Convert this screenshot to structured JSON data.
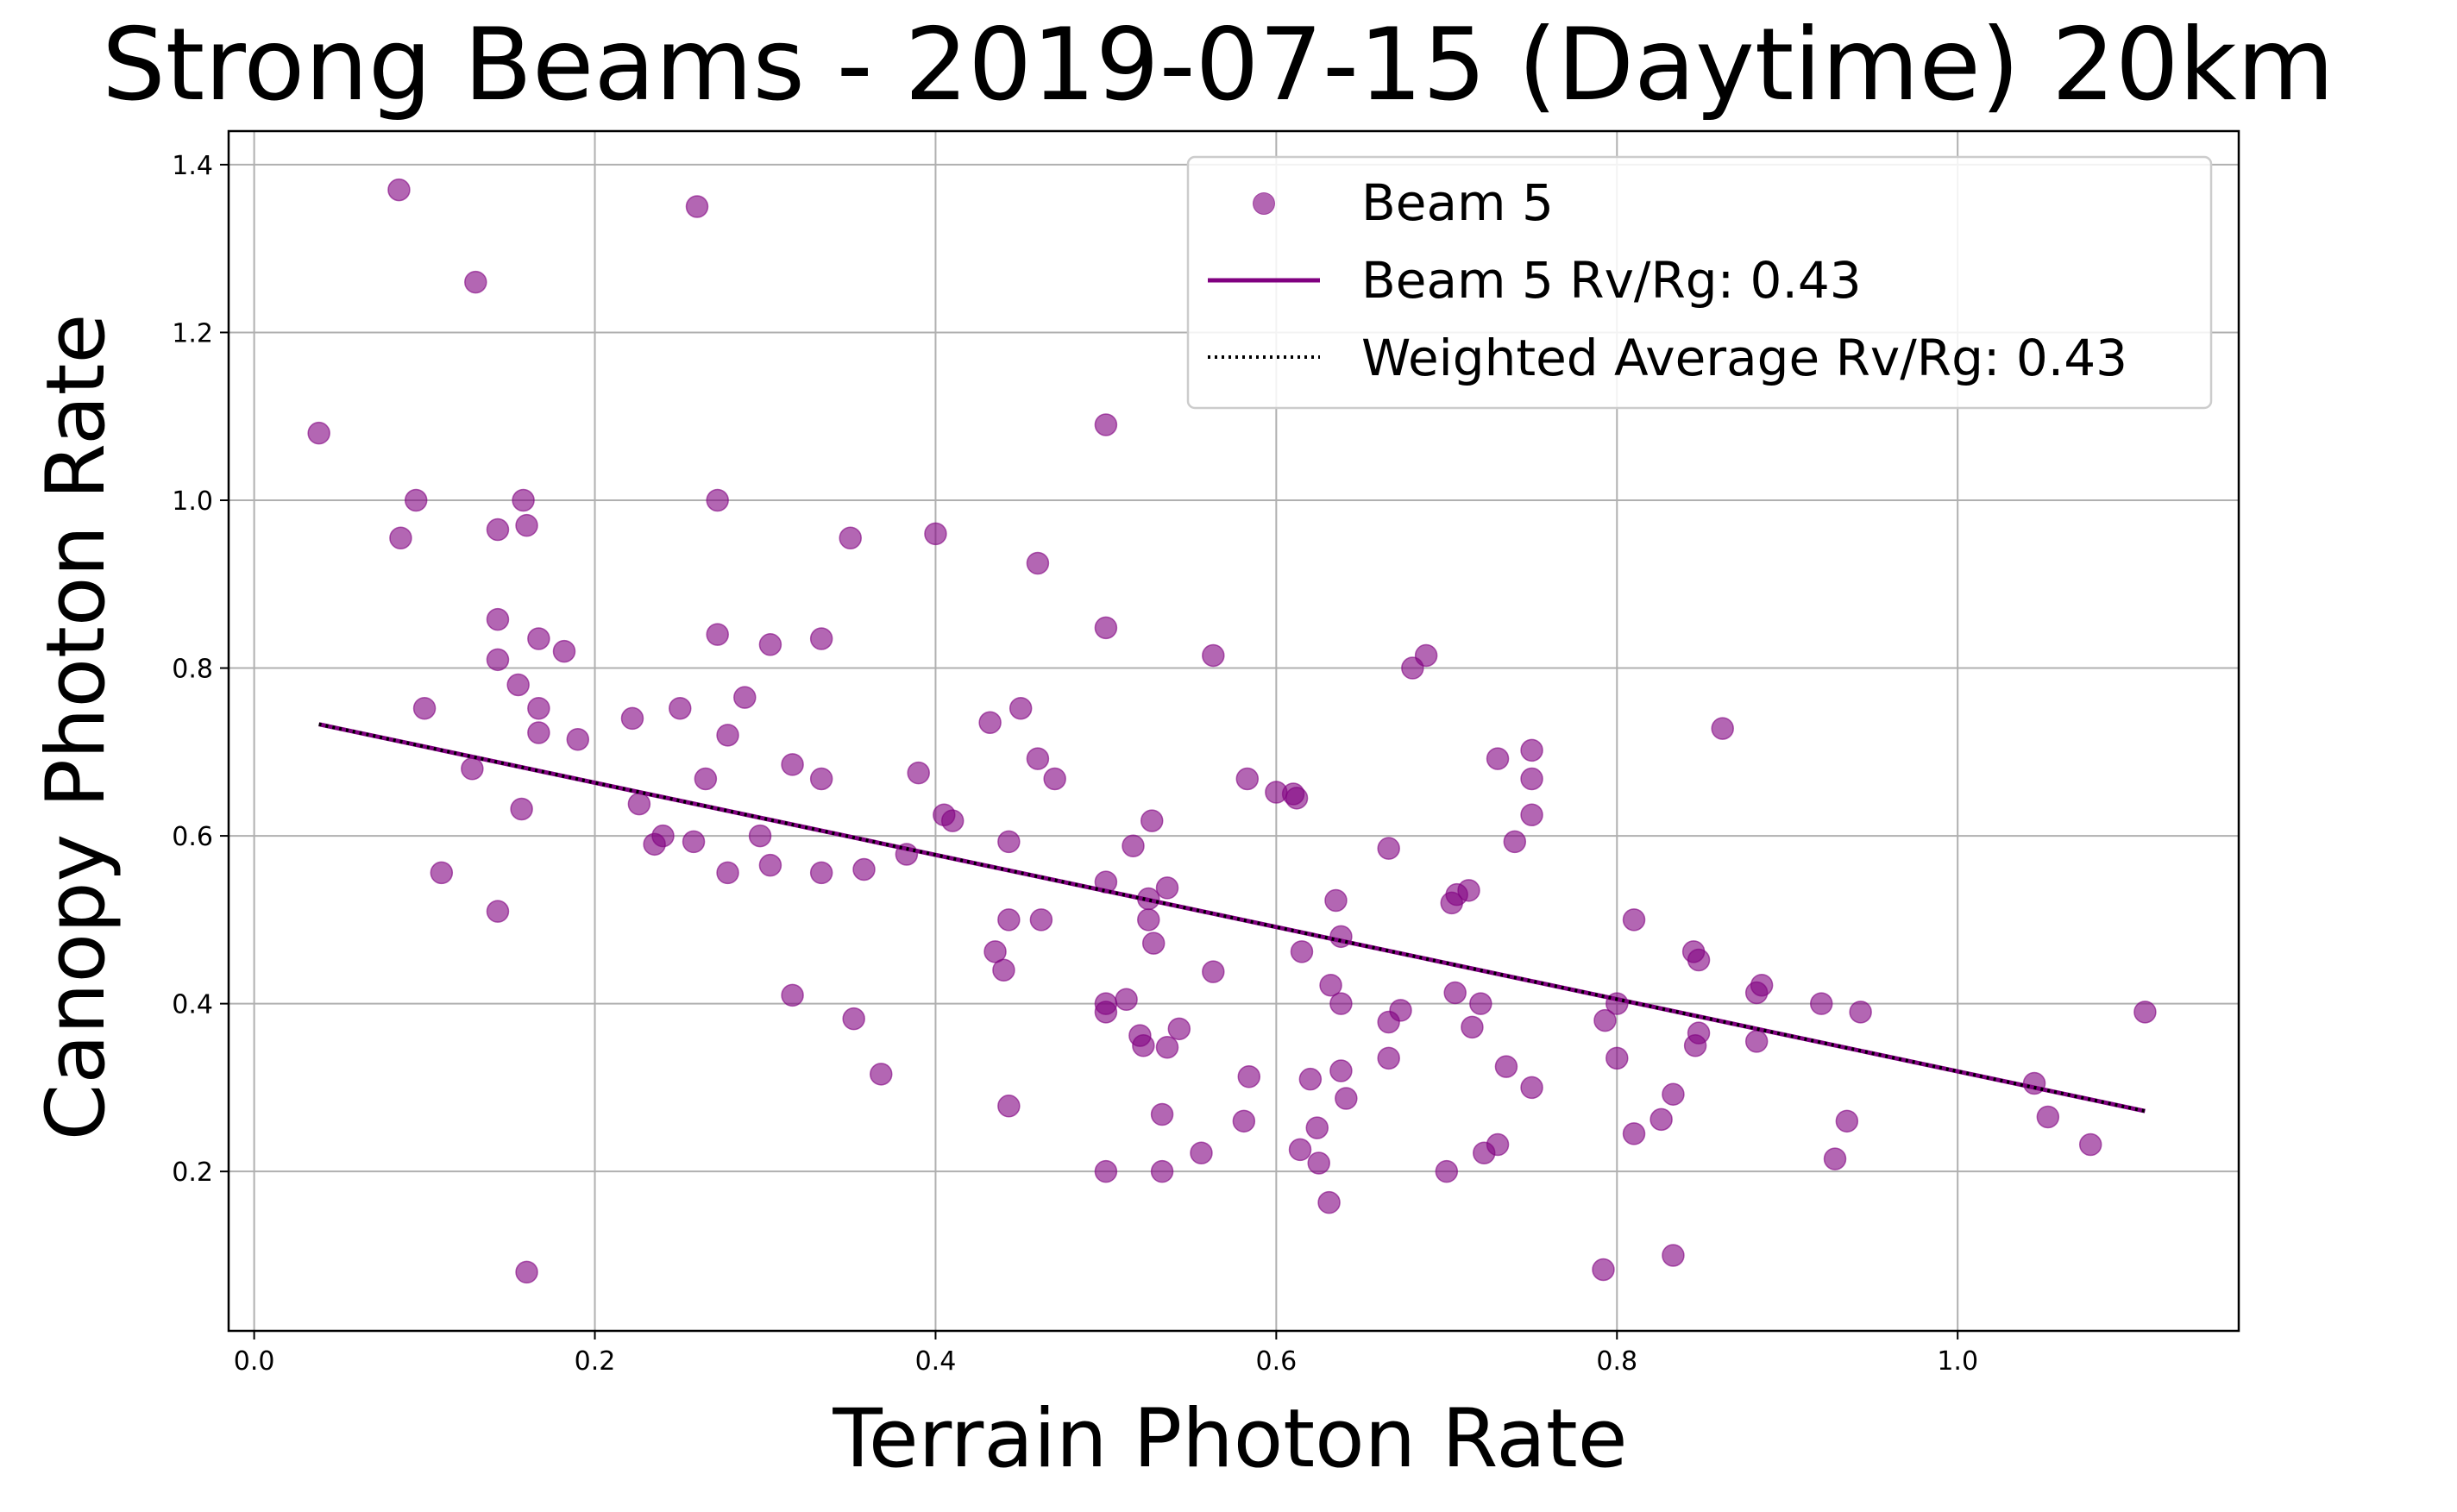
{
  "chart_data": {
    "type": "scatter",
    "title": "Strong Beams - 2019-07-15 (Daytime) 20km",
    "xlabel": "Terrain Photon Rate",
    "ylabel": "Canopy Photon Rate",
    "xlim": [
      -0.015,
      1.165
    ],
    "ylim": [
      0.01,
      1.44
    ],
    "xticks": [
      0.0,
      0.2,
      0.4,
      0.6,
      0.8,
      1.0
    ],
    "xtick_labels": [
      "0.0",
      "0.2",
      "0.4",
      "0.6",
      "0.8",
      "1.0"
    ],
    "yticks": [
      0.2,
      0.4,
      0.6,
      0.8,
      1.0,
      1.2,
      1.4
    ],
    "ytick_labels": [
      "0.2",
      "0.4",
      "0.6",
      "0.8",
      "1.0",
      "1.2",
      "1.4"
    ],
    "grid": true,
    "legend": {
      "placement": "top-right",
      "entries": [
        "Beam 5",
        "Beam 5 Rv/Rg: 0.43",
        "Weighted Average Rv/Rg: 0.43"
      ]
    },
    "colors": {
      "points": "#800080",
      "fit_line": "#800080",
      "avg_line": "#000000"
    },
    "series": [
      {
        "name": "Beam 5",
        "kind": "scatter",
        "points": [
          [
            0.085,
            1.37
          ],
          [
            0.26,
            1.35
          ],
          [
            0.13,
            1.26
          ],
          [
            0.038,
            1.08
          ],
          [
            0.5,
            1.09
          ],
          [
            0.095,
            1.0
          ],
          [
            0.158,
            1.0
          ],
          [
            0.272,
            1.0
          ],
          [
            0.086,
            0.955
          ],
          [
            0.143,
            0.965
          ],
          [
            0.16,
            0.97
          ],
          [
            0.35,
            0.955
          ],
          [
            0.4,
            0.96
          ],
          [
            0.46,
            0.925
          ],
          [
            0.143,
            0.858
          ],
          [
            0.167,
            0.835
          ],
          [
            0.182,
            0.82
          ],
          [
            0.143,
            0.81
          ],
          [
            0.272,
            0.84
          ],
          [
            0.303,
            0.828
          ],
          [
            0.333,
            0.835
          ],
          [
            0.5,
            0.848
          ],
          [
            0.563,
            0.815
          ],
          [
            0.68,
            0.8
          ],
          [
            0.688,
            0.815
          ],
          [
            0.155,
            0.78
          ],
          [
            0.1,
            0.752
          ],
          [
            0.167,
            0.752
          ],
          [
            0.25,
            0.752
          ],
          [
            0.288,
            0.765
          ],
          [
            0.167,
            0.723
          ],
          [
            0.19,
            0.715
          ],
          [
            0.222,
            0.74
          ],
          [
            0.278,
            0.72
          ],
          [
            0.432,
            0.735
          ],
          [
            0.45,
            0.752
          ],
          [
            0.862,
            0.728
          ],
          [
            0.73,
            0.692
          ],
          [
            0.75,
            0.702
          ],
          [
            0.128,
            0.68
          ],
          [
            0.265,
            0.668
          ],
          [
            0.316,
            0.685
          ],
          [
            0.333,
            0.668
          ],
          [
            0.39,
            0.675
          ],
          [
            0.46,
            0.692
          ],
          [
            0.47,
            0.668
          ],
          [
            0.583,
            0.668
          ],
          [
            0.6,
            0.652
          ],
          [
            0.61,
            0.65
          ],
          [
            0.612,
            0.645
          ],
          [
            0.75,
            0.668
          ],
          [
            0.157,
            0.632
          ],
          [
            0.226,
            0.638
          ],
          [
            0.405,
            0.625
          ],
          [
            0.41,
            0.618
          ],
          [
            0.527,
            0.618
          ],
          [
            0.75,
            0.625
          ],
          [
            0.235,
            0.59
          ],
          [
            0.24,
            0.6
          ],
          [
            0.258,
            0.593
          ],
          [
            0.297,
            0.6
          ],
          [
            0.443,
            0.593
          ],
          [
            0.516,
            0.588
          ],
          [
            0.666,
            0.585
          ],
          [
            0.74,
            0.593
          ],
          [
            0.383,
            0.578
          ],
          [
            0.11,
            0.556
          ],
          [
            0.278,
            0.556
          ],
          [
            0.303,
            0.565
          ],
          [
            0.333,
            0.556
          ],
          [
            0.358,
            0.56
          ],
          [
            0.5,
            0.545
          ],
          [
            0.536,
            0.538
          ],
          [
            0.703,
            0.52
          ],
          [
            0.706,
            0.53
          ],
          [
            0.713,
            0.535
          ],
          [
            0.143,
            0.51
          ],
          [
            0.525,
            0.525
          ],
          [
            0.635,
            0.523
          ],
          [
            0.443,
            0.5
          ],
          [
            0.462,
            0.5
          ],
          [
            0.525,
            0.5
          ],
          [
            0.81,
            0.5
          ],
          [
            0.528,
            0.472
          ],
          [
            0.638,
            0.48
          ],
          [
            0.435,
            0.462
          ],
          [
            0.44,
            0.44
          ],
          [
            0.615,
            0.462
          ],
          [
            0.845,
            0.462
          ],
          [
            0.848,
            0.452
          ],
          [
            0.563,
            0.438
          ],
          [
            0.632,
            0.422
          ],
          [
            0.316,
            0.41
          ],
          [
            0.512,
            0.405
          ],
          [
            0.5,
            0.4
          ],
          [
            0.5,
            0.39
          ],
          [
            0.638,
            0.4
          ],
          [
            0.705,
            0.413
          ],
          [
            0.72,
            0.4
          ],
          [
            0.8,
            0.4
          ],
          [
            0.673,
            0.392
          ],
          [
            0.882,
            0.413
          ],
          [
            0.885,
            0.422
          ],
          [
            0.92,
            0.4
          ],
          [
            0.943,
            0.39
          ],
          [
            1.11,
            0.39
          ],
          [
            0.352,
            0.382
          ],
          [
            0.52,
            0.362
          ],
          [
            0.522,
            0.35
          ],
          [
            0.536,
            0.348
          ],
          [
            0.543,
            0.37
          ],
          [
            0.666,
            0.378
          ],
          [
            0.715,
            0.372
          ],
          [
            0.793,
            0.38
          ],
          [
            0.846,
            0.35
          ],
          [
            0.848,
            0.365
          ],
          [
            0.882,
            0.355
          ],
          [
            0.368,
            0.316
          ],
          [
            0.584,
            0.313
          ],
          [
            0.62,
            0.31
          ],
          [
            0.638,
            0.32
          ],
          [
            0.666,
            0.335
          ],
          [
            0.735,
            0.325
          ],
          [
            0.75,
            0.3
          ],
          [
            0.8,
            0.335
          ],
          [
            0.641,
            0.287
          ],
          [
            0.833,
            0.292
          ],
          [
            0.443,
            0.278
          ],
          [
            0.533,
            0.268
          ],
          [
            0.581,
            0.26
          ],
          [
            0.624,
            0.252
          ],
          [
            0.826,
            0.262
          ],
          [
            0.935,
            0.26
          ],
          [
            1.045,
            0.305
          ],
          [
            1.053,
            0.265
          ],
          [
            0.556,
            0.222
          ],
          [
            0.614,
            0.226
          ],
          [
            0.625,
            0.21
          ],
          [
            0.722,
            0.222
          ],
          [
            0.73,
            0.232
          ],
          [
            0.81,
            0.245
          ],
          [
            0.928,
            0.215
          ],
          [
            1.078,
            0.232
          ],
          [
            0.5,
            0.2
          ],
          [
            0.533,
            0.2
          ],
          [
            0.7,
            0.2
          ],
          [
            0.631,
            0.163
          ],
          [
            0.16,
            0.08
          ],
          [
            0.792,
            0.083
          ],
          [
            0.833,
            0.1
          ]
        ]
      },
      {
        "name": "Beam 5 Rv/Rg: 0.43",
        "kind": "line",
        "x": [
          0.038,
          1.11
        ],
        "y": [
          0.733,
          0.272
        ]
      },
      {
        "name": "Weighted Average Rv/Rg: 0.43",
        "kind": "line",
        "style": "dotted",
        "x": [
          0.038,
          1.11
        ],
        "y": [
          0.733,
          0.272
        ]
      }
    ]
  }
}
